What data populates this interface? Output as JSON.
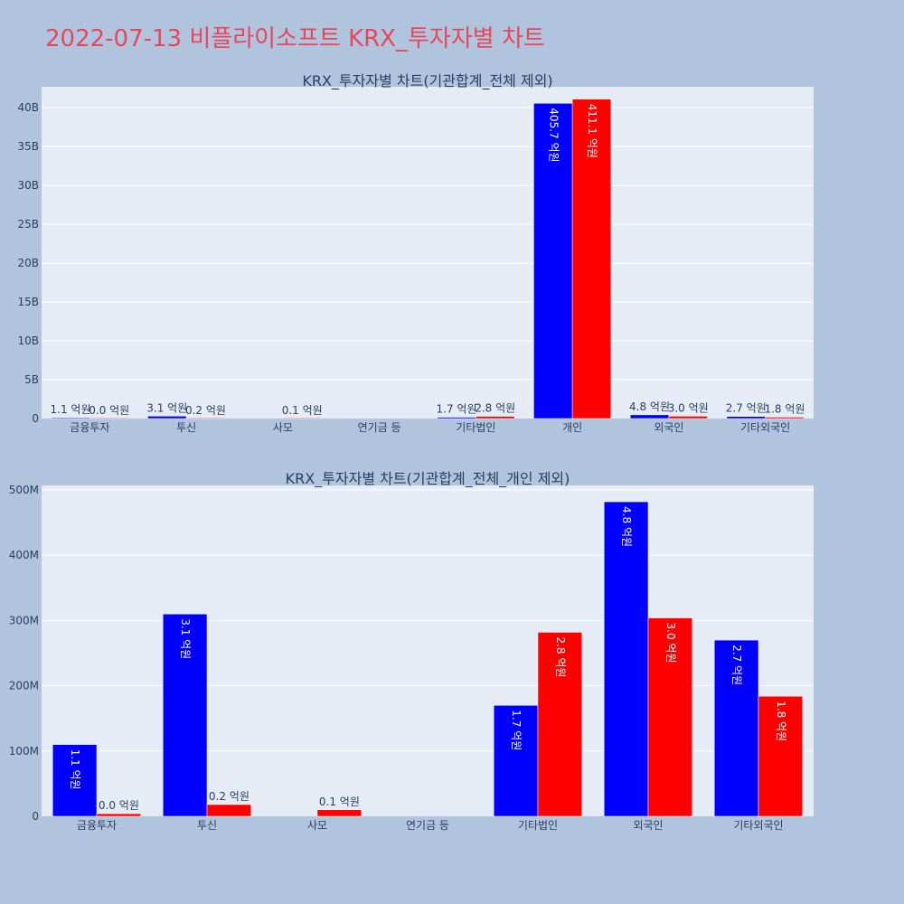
{
  "page": {
    "title": "2022-07-13 비플라이소프트 KRX_투자자별 차트"
  },
  "colors": {
    "page_bg": "#b0c4de",
    "plot_bg": "#e5ecf6",
    "buy": "#0000ff",
    "sell": "#ff0000",
    "title": "#e8465a",
    "text": "#2a3f5f"
  },
  "chart_data": [
    {
      "type": "bar",
      "title": "KRX_투자자별 차트(기관합계_전체 제외)",
      "categories": [
        "금융투자",
        "투신",
        "사모",
        "연기금 등",
        "기타법인",
        "개인",
        "외국인",
        "기타외국인"
      ],
      "series": [
        {
          "values": [
            110000000,
            310000000,
            null,
            null,
            170000000,
            40570000000,
            480000000,
            270000000
          ],
          "labels": [
            "1.1 억원",
            "3.1 억원",
            "",
            "",
            "1.7 억원",
            "405.7 억원",
            "4.8 억원",
            "2.7 억원"
          ]
        },
        {
          "values": [
            4000000,
            20000000,
            10000000,
            null,
            280000000,
            41110000000,
            300000000,
            180000000
          ],
          "labels": [
            "0.0 억원",
            "0.2 억원",
            "0.1 억원",
            "",
            "2.8 억원",
            "411.1 억원",
            "3.0 억원",
            "1.8 억원"
          ]
        }
      ],
      "yticks": [
        0,
        5000000000,
        10000000000,
        15000000000,
        20000000000,
        25000000000,
        30000000000,
        35000000000,
        40000000000
      ],
      "ytick_labels": [
        "0",
        "5B",
        "10B",
        "15B",
        "20B",
        "25B",
        "30B",
        "35B",
        "40B"
      ],
      "ylim": [
        0,
        42700000000
      ],
      "grid": true,
      "legend": "none"
    },
    {
      "type": "bar",
      "title": "KRX_투자자별 차트(기관합계_전체_개인 제외)",
      "categories": [
        "금융투자",
        "투신",
        "사모",
        "연기금 등",
        "기타법인",
        "외국인",
        "기타외국인"
      ],
      "series": [
        {
          "values": [
            110000000,
            310000000,
            null,
            null,
            170000000,
            482000000,
            270000000
          ],
          "labels": [
            "1.1 억원",
            "3.1 억원",
            "",
            "",
            "1.7 억원",
            "4.8 억원",
            "2.7 억원"
          ]
        },
        {
          "values": [
            4000000,
            18000000,
            10000000,
            null,
            282000000,
            304000000,
            184000000
          ],
          "labels": [
            "0.0 억원",
            "0.2 억원",
            "0.1 억원",
            "",
            "2.8 억원",
            "3.0 억원",
            "1.8 억원"
          ]
        }
      ],
      "yticks": [
        0,
        100000000,
        200000000,
        300000000,
        400000000,
        500000000
      ],
      "ytick_labels": [
        "0",
        "100M",
        "200M",
        "300M",
        "400M",
        "500M"
      ],
      "ylim": [
        0,
        507000000
      ],
      "grid": true,
      "legend": "none"
    }
  ]
}
